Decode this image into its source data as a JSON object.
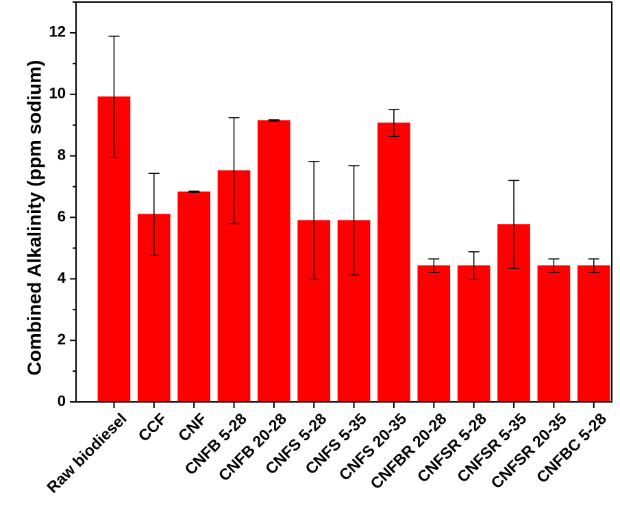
{
  "chart_data": {
    "type": "bar",
    "title": "",
    "xlabel": "",
    "ylabel": "Combined Alkalinity (ppm sodium)",
    "ylim": [
      0,
      13
    ],
    "yticks": [
      0,
      2,
      4,
      6,
      8,
      10,
      12
    ],
    "grid": false,
    "legend": "none",
    "bar_color": "#ff0000",
    "categories": [
      "Raw biodiesel",
      "CCF",
      "CNF",
      "CNFB 5-28",
      "CNFB 20-28",
      "CNFS 5-28",
      "CNFS 5-35",
      "CNFS 20-35",
      "CNFBR 20-28",
      "CNFSR 5-28",
      "CNFSR 5-35",
      "CNFSR 20-35",
      "CNFBC 5-28"
    ],
    "values": [
      9.92,
      6.1,
      6.83,
      7.52,
      9.15,
      5.9,
      5.9,
      9.07,
      4.43,
      4.43,
      5.77,
      4.43,
      4.43
    ],
    "errors": [
      1.97,
      1.33,
      0.02,
      1.72,
      0.02,
      1.92,
      1.78,
      0.44,
      0.22,
      0.45,
      1.43,
      0.22,
      0.22
    ]
  }
}
